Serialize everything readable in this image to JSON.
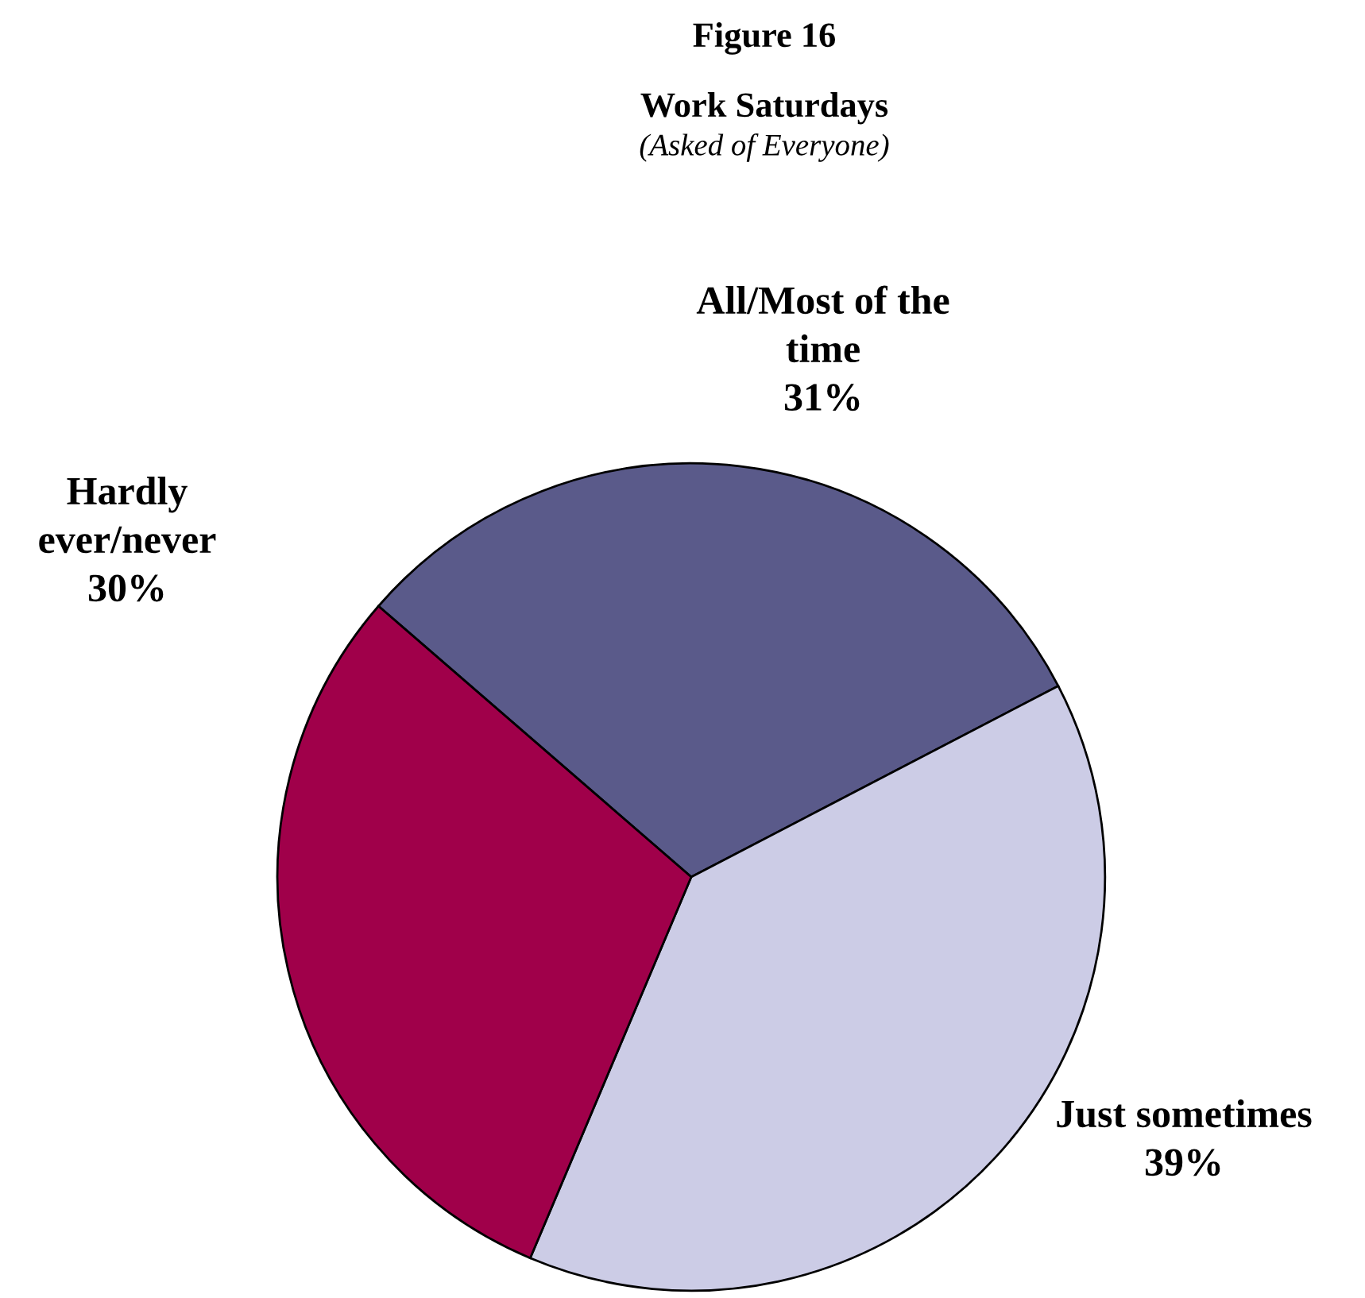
{
  "chart_data": {
    "type": "pie",
    "title": "Figure 16",
    "subtitle": "Work Saturdays",
    "annotations": [
      "(Asked of Everyone)"
    ],
    "categories": [
      "All/Most of the time",
      "Just sometimes",
      "Hardly ever/never"
    ],
    "values": [
      31,
      39,
      30
    ],
    "colors": [
      "#5a5a8a",
      "#ccccE6",
      "#a0004a"
    ],
    "value_labels": [
      "31%",
      "39%",
      "30%"
    ]
  }
}
